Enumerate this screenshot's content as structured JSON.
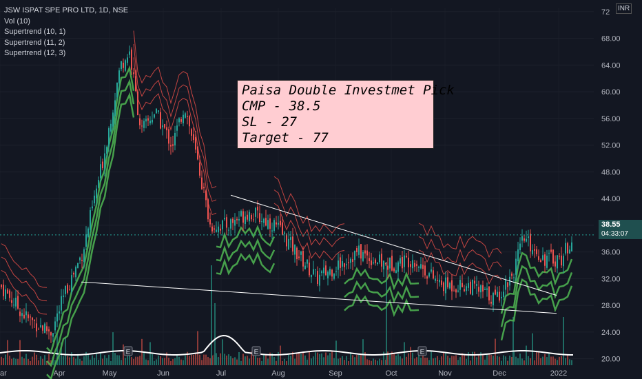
{
  "legend": {
    "symbol": "JSW ISPAT SPE PRO LTD, 1D, NSE",
    "indicators": [
      "Vol (10)",
      "Supertrend (10, 1)",
      "Supertrend (11, 2)",
      "Supertrend (12, 3)"
    ]
  },
  "annotation": {
    "lines": [
      "Paisa Double Investmet Pick",
      "CMP - 38.5",
      "SL - 27",
      "Target - 77"
    ]
  },
  "currency": "INR",
  "price_tag": {
    "price": "38.55",
    "timer": "04:33:07"
  },
  "colors": {
    "background": "#131722",
    "up": "#26a69a",
    "down": "#ef5350",
    "supertrend_up": "#4caf50",
    "supertrend_down": "#f0504a",
    "trendline": "#ffffff"
  },
  "chart_data": {
    "type": "candlestick",
    "x_ticks": [
      "ar",
      "Apr",
      "May",
      "Jun",
      "Jul",
      "Aug",
      "Sep",
      "Oct",
      "Nov",
      "Dec",
      "2022"
    ],
    "y_ticks": [
      "72",
      "68.00",
      "64.00",
      "60.00",
      "56.00",
      "52.00",
      "48.00",
      "44.00",
      "40.00",
      "36.00",
      "32.00",
      "28.00",
      "24.00",
      "20.00"
    ],
    "ylim": [
      18,
      72.5
    ],
    "close_series": [
      {
        "month": "Mar",
        "close": 29.0
      },
      {
        "month": "Apr",
        "close": 31.5
      },
      {
        "month": "May",
        "close": 64.0
      },
      {
        "month": "Jun",
        "close": 55.0
      },
      {
        "month": "Jul",
        "close": 38.0
      },
      {
        "month": "Aug",
        "close": 34.0
      },
      {
        "month": "Sep",
        "close": 34.0
      },
      {
        "month": "Oct",
        "close": 33.0
      },
      {
        "month": "Nov",
        "close": 30.0
      },
      {
        "month": "Dec",
        "close": 34.5
      },
      {
        "month": "2022",
        "close": 38.55
      }
    ],
    "trendlines": [
      {
        "from": {
          "month": "Jul",
          "price": 44.5
        },
        "to": {
          "month": "Dec",
          "price": 29.5
        }
      },
      {
        "from": {
          "month": "Apr",
          "price": 31.5
        },
        "to": {
          "month": "Dec",
          "price": 26.8
        }
      }
    ],
    "last_price": 38.55
  }
}
